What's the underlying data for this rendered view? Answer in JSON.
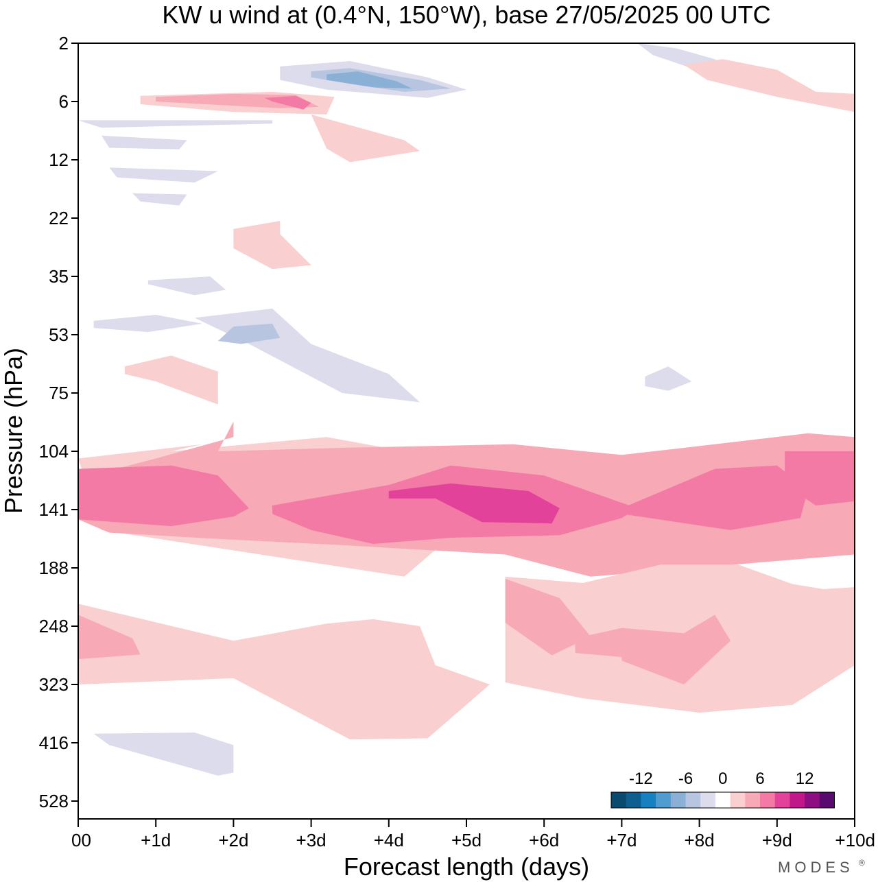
{
  "chart_data": {
    "type": "heatmap",
    "title": "KW u wind at (0.4°N, 150°W),  base 27/05/2025  00 UTC",
    "xlabel": "Forecast length (days)",
    "ylabel": "Pressure (hPa)",
    "x_ticks": [
      "00",
      "+1d",
      "+2d",
      "+3d",
      "+4d",
      "+5d",
      "+6d",
      "+7d",
      "+8d",
      "+9d",
      "+10d"
    ],
    "xlim": [
      0,
      10
    ],
    "y_ticks": [
      "2",
      "6",
      "12",
      "22",
      "35",
      "53",
      "75",
      "104",
      "141",
      "188",
      "248",
      "323",
      "416",
      "528"
    ],
    "y_scale": "log-pressure (inverted)",
    "colorbar": {
      "tick_labels": [
        "-12",
        "-6",
        "0",
        "6",
        "12"
      ],
      "colors": [
        "#0b4a6f",
        "#0d5f8f",
        "#1680c0",
        "#4f9cd0",
        "#8ab0d6",
        "#b7c5e0",
        "#dcdcec",
        "#ffffff",
        "#f9cfcf",
        "#f7a9b6",
        "#f37aa5",
        "#e2429a",
        "#c01889",
        "#8c0e80",
        "#5a0a6e"
      ]
    },
    "regions": [
      {
        "value": 3,
        "x": [
          0.0,
          1.6,
          1.2,
          3.2,
          4.2,
          3.9,
          4.8,
          4.6,
          4.2,
          0.3
        ],
        "p": [
          108,
          100,
          104,
          96,
          104,
          118,
          140,
          172,
          196,
          156
        ]
      },
      {
        "value": 6,
        "x": [
          2.0,
          1.8,
          3.4,
          5.6,
          7.0,
          7.8,
          9.4,
          10.0,
          10.0,
          6.6,
          5.5,
          3.4,
          1.8,
          0.4,
          0.0,
          0.0,
          1.0,
          2.0
        ],
        "p": [
          88,
          104,
          102,
          100,
          106,
          102,
          94,
          96,
          176,
          196,
          176,
          168,
          163,
          158,
          148,
          120,
          108,
          96
        ]
      },
      {
        "value": 9,
        "x": [
          0.0,
          1.2,
          1.8,
          2.2,
          2.0,
          1.2,
          0.0
        ],
        "p": [
          114,
          112,
          118,
          140,
          146,
          153,
          148
        ]
      },
      {
        "value": 9,
        "x": [
          2.5,
          4.0,
          4.8,
          6.0,
          7.2,
          7.0,
          6.2,
          4.8,
          3.8,
          3.0,
          2.5
        ],
        "p": [
          138,
          124,
          112,
          118,
          140,
          147,
          160,
          162,
          167,
          156,
          144
        ]
      },
      {
        "value": 9,
        "x": [
          7.0,
          8.2,
          9.0,
          9.4,
          9.3,
          8.4,
          7.0
        ],
        "p": [
          140,
          114,
          112,
          127,
          147,
          156,
          144
        ]
      },
      {
        "value": 9,
        "x": [
          9.1,
          10.0,
          10.0,
          9.5,
          9.1
        ],
        "p": [
          104,
          104,
          135,
          138,
          124
        ]
      },
      {
        "value": 12,
        "x": [
          4.0,
          4.8,
          5.8,
          6.2,
          6.1,
          5.2,
          4.6,
          4.0
        ],
        "p": [
          128,
          123,
          128,
          140,
          151,
          150,
          133,
          133
        ]
      },
      {
        "value": 3,
        "x": [
          0.0,
          2.0,
          3.2,
          3.8,
          4.4,
          4.6,
          5.3,
          4.5,
          3.5,
          2.0,
          0.0
        ],
        "p": [
          223,
          265,
          245,
          240,
          248,
          296,
          323,
          408,
          410,
          314,
          323
        ]
      },
      {
        "value": 3,
        "x": [
          5.5,
          6.5,
          7.5,
          8.5,
          9.2,
          9.6,
          10.0,
          10.0,
          9.2,
          8.0,
          6.5,
          5.5
        ],
        "p": [
          196,
          202,
          185,
          185,
          203,
          208,
          206,
          296,
          353,
          365,
          343,
          320
        ]
      },
      {
        "value": 6,
        "x": [
          0.0,
          0.7,
          0.8,
          0.0
        ],
        "p": [
          235,
          262,
          282,
          288
        ]
      },
      {
        "value": 6,
        "x": [
          5.5,
          6.2,
          6.6,
          6.1,
          5.5
        ],
        "p": [
          198,
          217,
          260,
          283,
          244
        ]
      },
      {
        "value": 6,
        "x": [
          6.4,
          7.0,
          7.4,
          7.8,
          7.2,
          6.4
        ],
        "p": [
          262,
          250,
          283,
          265,
          287,
          280
        ]
      },
      {
        "value": 6,
        "x": [
          7.0,
          7.8,
          8.2,
          8.4,
          7.8,
          7.0
        ],
        "p": [
          250,
          256,
          235,
          265,
          323,
          290
        ]
      },
      {
        "value": -3,
        "x": [
          0.2,
          1.5,
          2.0,
          2.0,
          1.8,
          0.4
        ],
        "p": [
          400,
          398,
          420,
          470,
          476,
          420
        ]
      },
      {
        "value": -3,
        "x": [
          1.5,
          2.5,
          3.0,
          4.0,
          4.4,
          3.4,
          2.2
        ],
        "p": [
          47,
          44,
          56,
          67,
          79,
          75,
          56
        ]
      },
      {
        "value": -6,
        "x": [
          2.0,
          2.5,
          2.6,
          2.1,
          1.8
        ],
        "p": [
          50,
          49,
          54,
          56,
          55
        ]
      },
      {
        "value": -3,
        "x": [
          2.6,
          3.5,
          4.5,
          5.0,
          4.5,
          3.2,
          2.6
        ],
        "p": [
          3.1,
          2.8,
          3.8,
          4.8,
          5.6,
          4.8,
          4.0
        ]
      },
      {
        "value": -6,
        "x": [
          3.0,
          3.5,
          4.4,
          4.8,
          4.2,
          3.5,
          3.0
        ],
        "p": [
          3.4,
          3.2,
          4.0,
          4.7,
          5.0,
          4.3,
          3.8
        ]
      },
      {
        "value": -9,
        "x": [
          3.2,
          3.6,
          4.1,
          4.3,
          3.8,
          3.2
        ],
        "p": [
          3.6,
          3.4,
          4.1,
          4.7,
          4.6,
          4.0
        ]
      },
      {
        "value": -3,
        "x": [
          7.2,
          7.7,
          8.2,
          8.4,
          7.9,
          7.4
        ],
        "p": [
          2.0,
          2.2,
          2.7,
          3.3,
          3.2,
          2.5
        ]
      },
      {
        "value": 3,
        "x": [
          0.8,
          2.5,
          3.3,
          3.2,
          2.0,
          0.8
        ],
        "p": [
          5.4,
          5.0,
          5.5,
          7.0,
          6.8,
          6.2
        ]
      },
      {
        "value": 6,
        "x": [
          1.0,
          2.0,
          2.8,
          3.1,
          2.6,
          1.0
        ],
        "p": [
          5.5,
          5.2,
          5.3,
          6.4,
          6.5,
          6.0
        ]
      },
      {
        "value": 9,
        "x": [
          2.4,
          2.8,
          3.0,
          2.9,
          2.5
        ],
        "p": [
          5.6,
          5.4,
          6.1,
          6.6,
          6.0
        ]
      },
      {
        "value": 3,
        "x": [
          3.0,
          4.2,
          4.4,
          3.5,
          3.2
        ],
        "p": [
          7.0,
          9.5,
          10.8,
          12.3,
          10.5
        ]
      },
      {
        "value": -3,
        "x": [
          0.3,
          1.4,
          1.3,
          0.4
        ],
        "p": [
          9.0,
          9.5,
          10.6,
          10.4
        ]
      },
      {
        "value": -3,
        "x": [
          0.0,
          2.5,
          2.5,
          0.3
        ],
        "p": [
          7.5,
          7.5,
          7.8,
          8.2
        ]
      },
      {
        "value": -3,
        "x": [
          0.4,
          1.8,
          1.5,
          0.5
        ],
        "p": [
          13.0,
          13.5,
          15.2,
          14.4
        ]
      },
      {
        "value": -3,
        "x": [
          0.7,
          1.4,
          1.3,
          0.8
        ],
        "p": [
          17.0,
          17.2,
          19.3,
          18.5
        ]
      },
      {
        "value": 3,
        "x": [
          2.0,
          2.6,
          2.6,
          3.0,
          2.5,
          2.0
        ],
        "p": [
          24.0,
          22.5,
          25.0,
          32.0,
          33.0,
          28.0
        ]
      },
      {
        "value": -3,
        "x": [
          0.9,
          1.7,
          1.9,
          1.5,
          0.9
        ],
        "p": [
          36.0,
          35.0,
          38.5,
          40.0,
          37.0
        ]
      },
      {
        "value": -3,
        "x": [
          0.2,
          1.0,
          1.6,
          0.9,
          0.2
        ],
        "p": [
          48.0,
          46.0,
          49.0,
          52.0,
          50.5
        ]
      },
      {
        "value": 3,
        "x": [
          0.6,
          1.2,
          1.8,
          1.8,
          1.0,
          0.6
        ],
        "p": [
          64.0,
          60.0,
          66.0,
          80.0,
          70.0,
          67.0
        ]
      },
      {
        "value": -3,
        "x": [
          7.3,
          7.6,
          7.9,
          7.6,
          7.3
        ],
        "p": [
          68.0,
          64.0,
          70.0,
          74.0,
          72.0
        ]
      },
      {
        "value": 3,
        "x": [
          7.8,
          8.3,
          9.0,
          9.5,
          10.0,
          10.0,
          9.0,
          8.1
        ],
        "p": [
          3.0,
          2.7,
          3.3,
          5.0,
          5.2,
          6.8,
          5.5,
          4.0
        ]
      }
    ]
  },
  "branding": {
    "logo_text": "MODES",
    "mark": "®"
  }
}
